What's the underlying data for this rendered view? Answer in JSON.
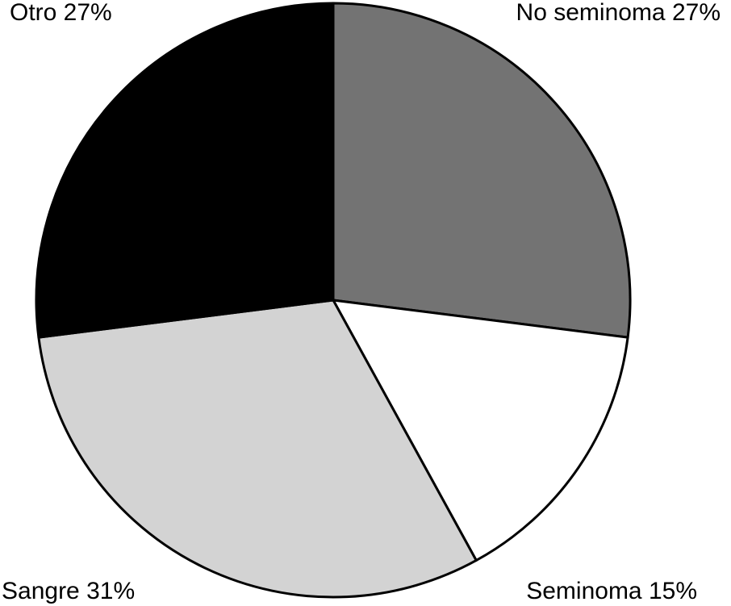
{
  "chart_data": {
    "type": "pie",
    "start_angle_deg": 0,
    "direction": "clockwise",
    "slices": [
      {
        "label": "No seminoma 27%",
        "value": 27,
        "color": "#737373"
      },
      {
        "label": "Seminoma 15%",
        "value": 15,
        "color": "#ffffff"
      },
      {
        "label": "Sangre 31%",
        "value": 31,
        "color": "#d3d3d3"
      },
      {
        "label": "Otro 27%",
        "value": 27,
        "color": "#000000"
      }
    ],
    "edge_color": "#000000",
    "legend": "none"
  }
}
